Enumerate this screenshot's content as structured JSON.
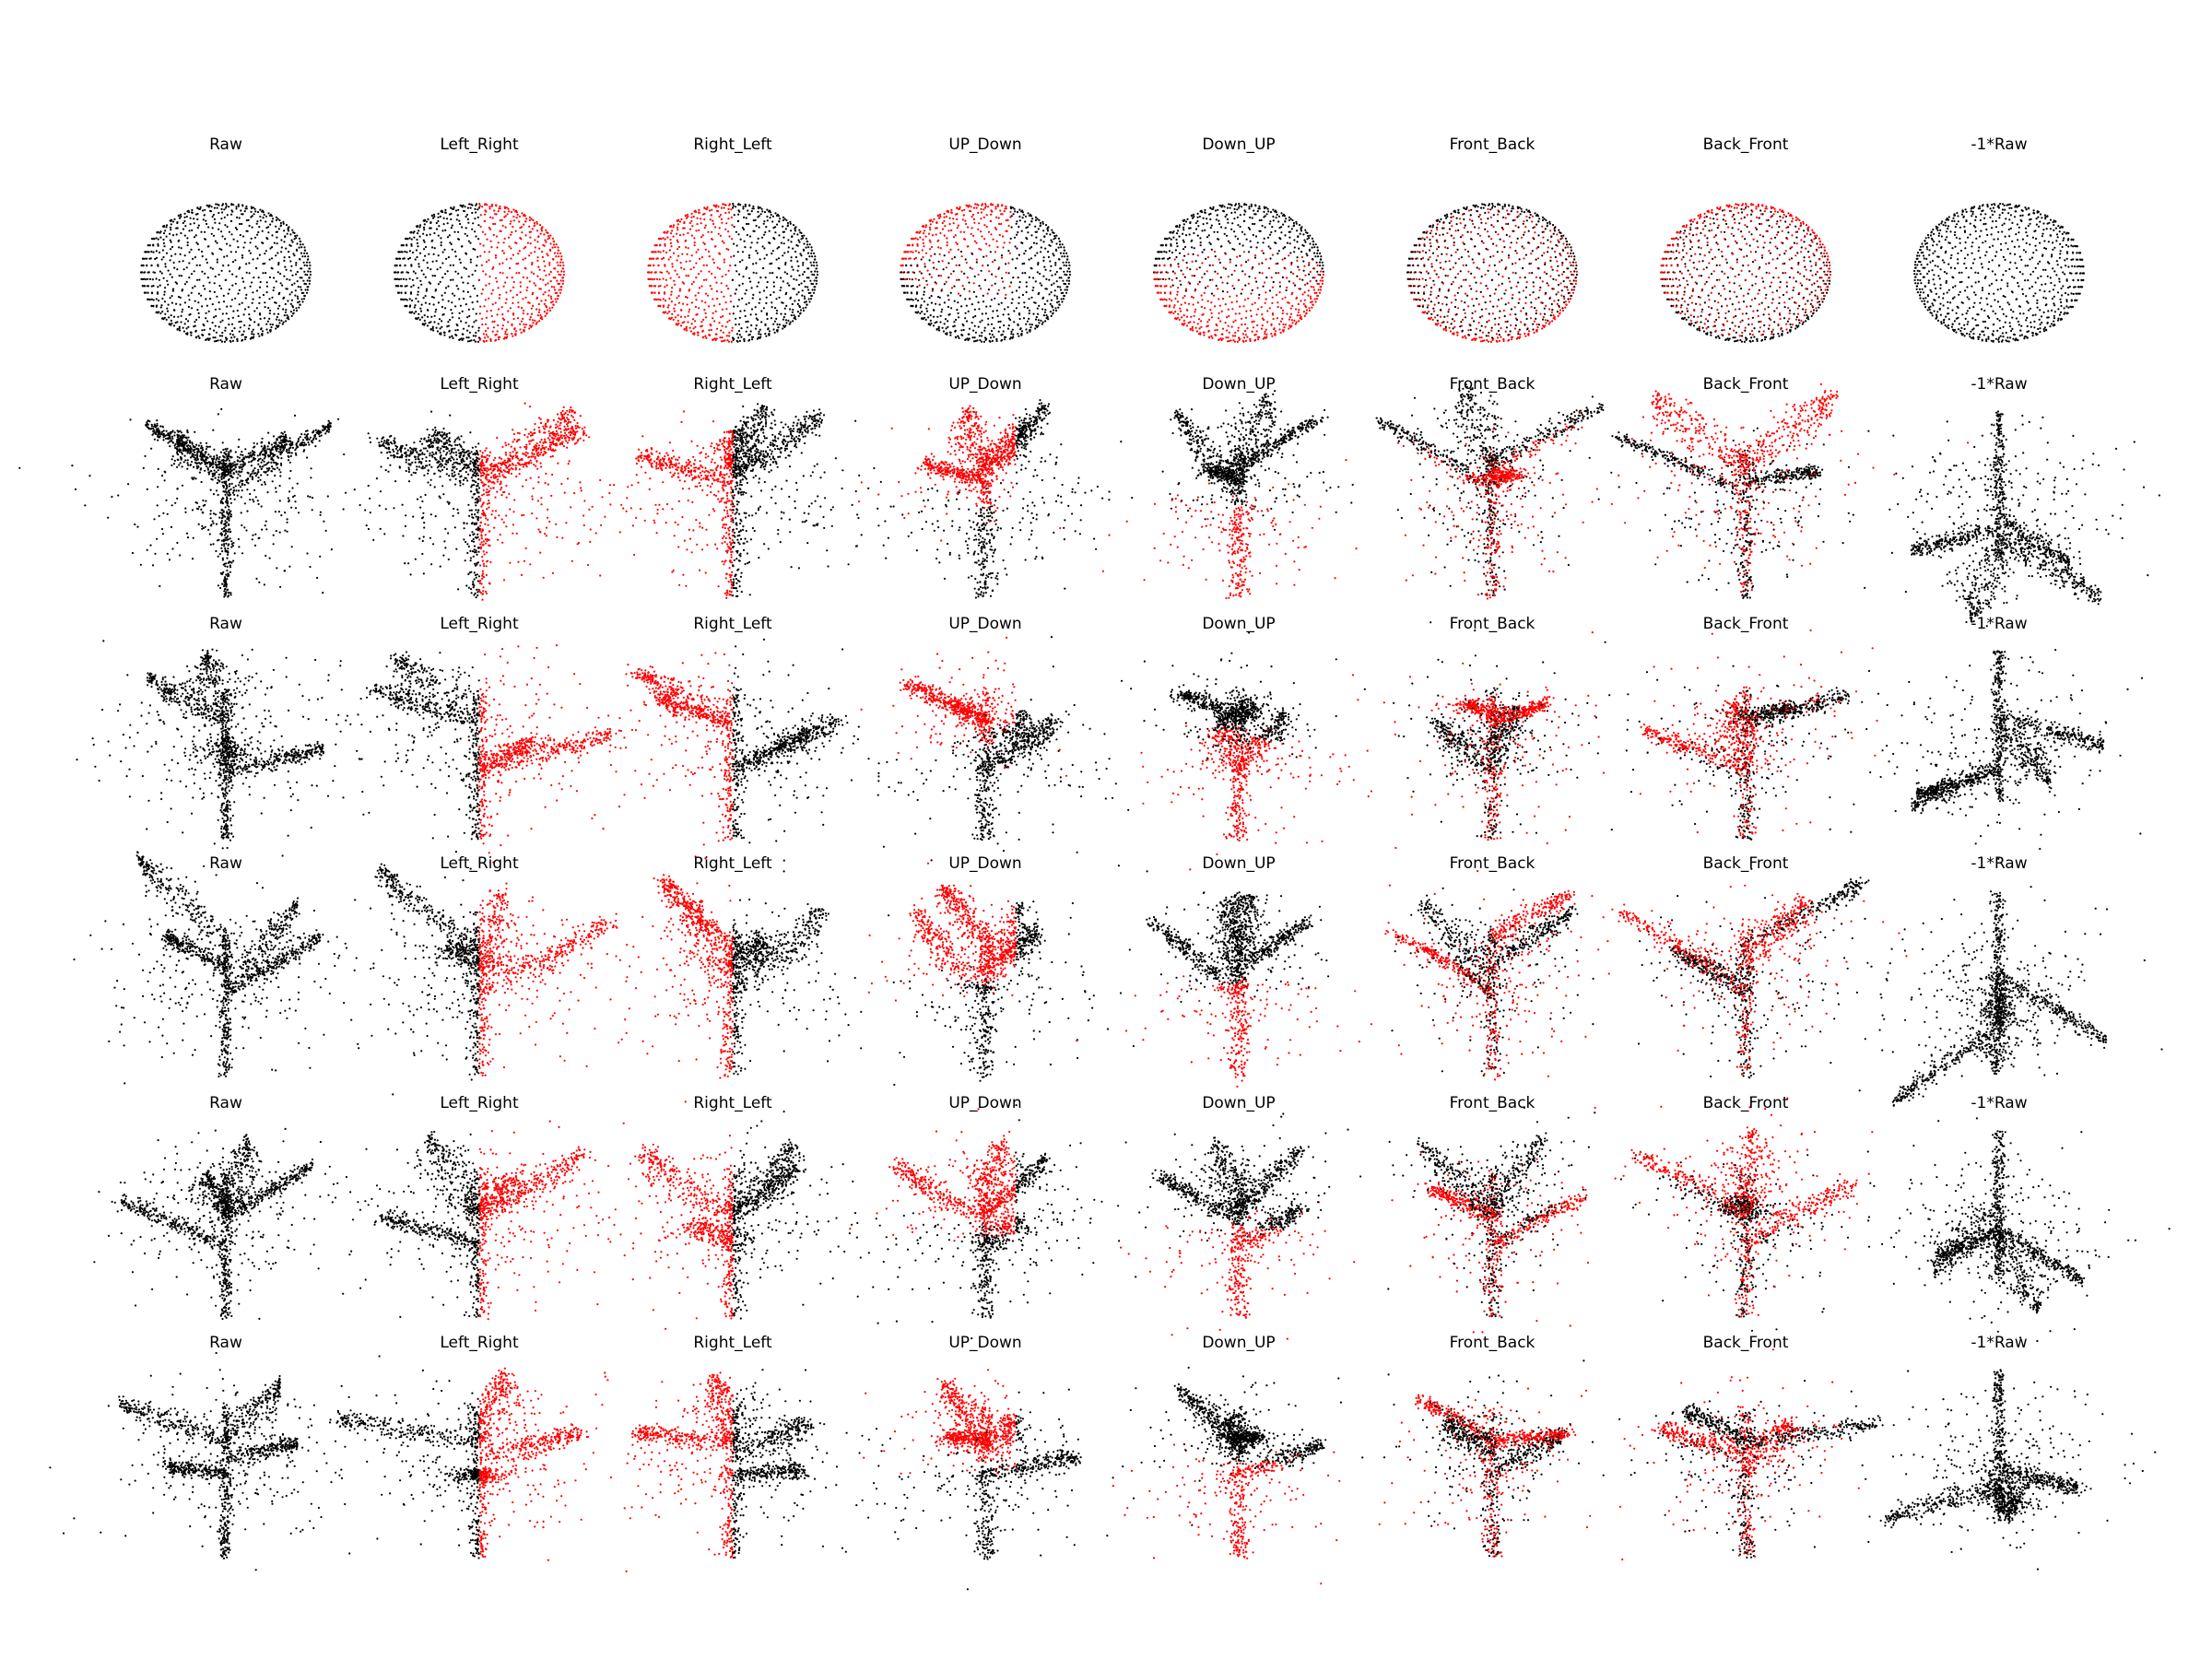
{
  "figure": {
    "column_titles": [
      "Raw",
      "Left_Right",
      "Right_Left",
      "UP_Down",
      "Down_UP",
      "Front_Back",
      "Back_Front",
      "-1*Raw"
    ],
    "rows": [
      {
        "object": "sphere",
        "titles": [
          "Raw",
          "Left_Right",
          "Right_Left",
          "UP_Down",
          "Down_UP",
          "Front_Back",
          "Back_Front",
          "-1*Raw"
        ]
      },
      {
        "object": "plant",
        "titles": [
          "Raw",
          "Left_Right",
          "Right_Left",
          "UP_Down",
          "Down_UP",
          "Front_Back",
          "Back_Front",
          "-1*Raw"
        ]
      },
      {
        "object": "plant",
        "titles": [
          "Raw",
          "Left_Right",
          "Right_Left",
          "UP_Down",
          "Down_UP",
          "Front_Back",
          "Back_Front",
          "-1*Raw"
        ]
      },
      {
        "object": "plant",
        "titles": [
          "Raw",
          "Left_Right",
          "Right_Left",
          "UP_Down",
          "Down_UP",
          "Front_Back",
          "Back_Front",
          "-1*Raw"
        ]
      },
      {
        "object": "plant",
        "titles": [
          "Raw",
          "Left_Right",
          "Right_Left",
          "UP_Down",
          "Down_UP",
          "Front_Back",
          "Back_Front",
          "-1*Raw"
        ]
      },
      {
        "object": "plant",
        "titles": [
          "Raw",
          "Left_Right",
          "Right_Left",
          "UP_Down",
          "Down_UP",
          "Front_Back",
          "Back_Front",
          "-1*Raw"
        ]
      }
    ],
    "colors": {
      "unchanged_points": "#000000",
      "modified_points": "#ff0000",
      "background": "#ffffff",
      "title_text": "#000000"
    },
    "red_region_by_column": [
      "none",
      "left",
      "right",
      "up",
      "down",
      "front",
      "back",
      "none"
    ]
  }
}
